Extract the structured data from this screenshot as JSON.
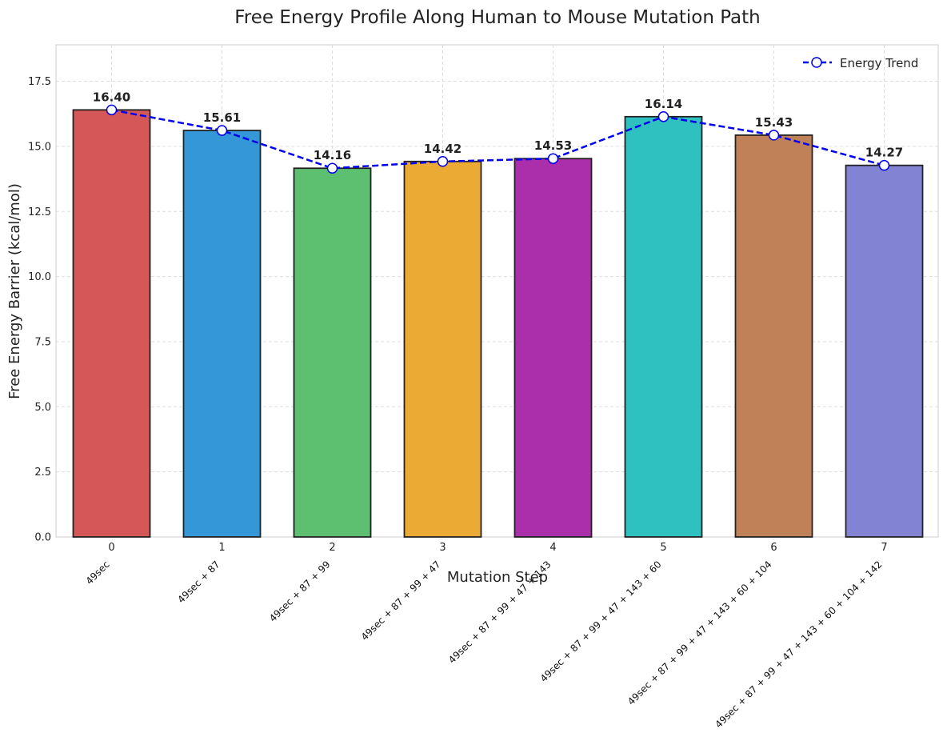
{
  "chart_data": {
    "type": "bar",
    "title": "Free Energy Profile Along Human to Mouse Mutation Path",
    "xlabel": "Mutation Step",
    "ylabel": "Free Energy Barrier (kcal/mol)",
    "ylim": [
      0,
      18.9
    ],
    "yticks": [
      0.0,
      2.5,
      5.0,
      7.5,
      10.0,
      12.5,
      15.0,
      17.5
    ],
    "ytick_labels": [
      "0.0",
      "2.5",
      "5.0",
      "7.5",
      "10.0",
      "12.5",
      "15.0",
      "17.5"
    ],
    "categories": [
      "0",
      "1",
      "2",
      "3",
      "4",
      "5",
      "6",
      "7"
    ],
    "mutation_labels": [
      "49sec",
      "49sec + 87",
      "49sec + 87 + 99",
      "49sec + 87 + 99 + 47",
      "49sec + 87 + 99 + 47 + 143",
      "49sec + 87 + 99 + 47 + 143 + 60",
      "49sec + 87 + 99 + 47 + 143 + 60 + 104",
      "49sec + 87 + 99 + 47 + 143 + 60 + 104 + 142"
    ],
    "values": [
      16.4,
      15.61,
      14.16,
      14.42,
      14.53,
      16.14,
      15.43,
      14.27
    ],
    "value_labels": [
      "16.40",
      "15.61",
      "14.16",
      "14.42",
      "14.53",
      "16.14",
      "15.43",
      "14.27"
    ],
    "bar_colors": [
      "#d65757",
      "#3498d8",
      "#5cc070",
      "#ebaa34",
      "#ab2eab",
      "#2fc0c0",
      "#c08158",
      "#8383d4"
    ],
    "series": [
      {
        "name": "Energy Trend",
        "type": "line",
        "style": "dashed",
        "marker": "circle",
        "color": "#0000ee",
        "values": [
          16.4,
          15.61,
          14.16,
          14.42,
          14.53,
          16.14,
          15.43,
          14.27
        ]
      }
    ],
    "legend_position": "top-right",
    "grid": true
  }
}
